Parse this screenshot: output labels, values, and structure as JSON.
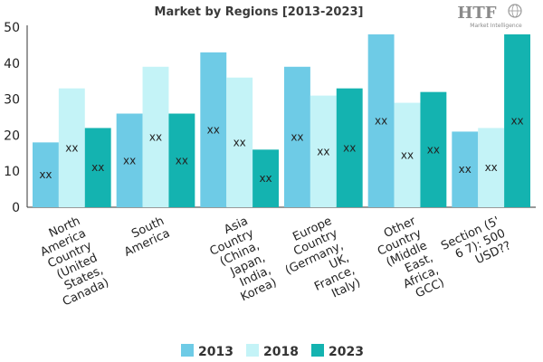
{
  "logo": {
    "main": "HTF",
    "sub": "Market Intelligence"
  },
  "chart_data": {
    "type": "bar",
    "title": "Market by Regions [2013-2023]",
    "xlabel": "",
    "ylabel": "",
    "ylim": [
      0,
      50
    ],
    "yticks": [
      0,
      10,
      20,
      30,
      40,
      50
    ],
    "grid": false,
    "legend_position": "bottom",
    "categories": [
      [
        "North",
        "America",
        "Country",
        "(United",
        "States,",
        "Canada)"
      ],
      [
        "South",
        "America"
      ],
      [
        "Asia",
        "Country",
        "(China,",
        "Japan,",
        "India,",
        "Korea)"
      ],
      [
        "Europe",
        "Country",
        "(Germany,",
        "UK,",
        "France,",
        "Italy)"
      ],
      [
        "Other",
        "Country",
        "(Middle",
        "East,",
        "Africa,",
        "GCC)"
      ],
      [
        "Section (5'",
        "6 7): 500",
        "USD??"
      ]
    ],
    "series": [
      {
        "name": "2013",
        "color": "#6ecbe6",
        "values": [
          18,
          26,
          43,
          39,
          48,
          21
        ]
      },
      {
        "name": "2018",
        "color": "#c4f3f7",
        "values": [
          33,
          39,
          36,
          31,
          29,
          22
        ]
      },
      {
        "name": "2023",
        "color": "#14b3b0",
        "values": [
          22,
          26,
          16,
          33,
          32,
          48
        ]
      }
    ],
    "data_label": "xx"
  }
}
